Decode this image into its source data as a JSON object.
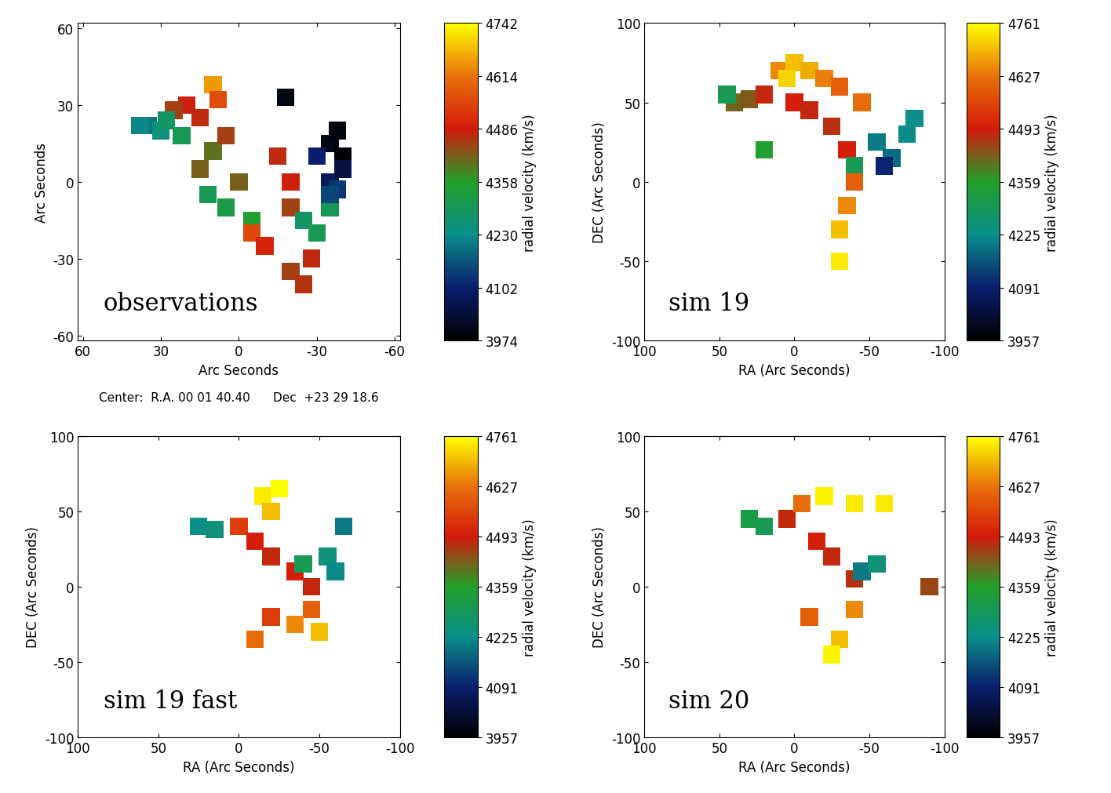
{
  "chart_data": [
    {
      "type": "scatter",
      "annotation": "observations",
      "note": "Center:  R.A. 00 01 40.40      Dec  +23 29 18.6",
      "x_label": "Arc Seconds",
      "y_label": "Arc Seconds",
      "marker": "s",
      "xlim": [
        62,
        -62
      ],
      "ylim": [
        -62,
        62
      ],
      "xticks": [
        60,
        30,
        0,
        -30,
        -60
      ],
      "yticks": [
        -60,
        -30,
        0,
        30,
        60
      ],
      "x": [
        10,
        8,
        20,
        15,
        25,
        35,
        30,
        38,
        28,
        22,
        10,
        15,
        5,
        -15,
        -20,
        0,
        12,
        5,
        -5,
        -20,
        -5,
        -10,
        -20,
        -25,
        -28,
        -25,
        -30,
        -35,
        -35,
        -40,
        -35,
        -38,
        -40,
        -30,
        -38,
        -18,
        -35
      ],
      "y": [
        38,
        32,
        30,
        25,
        28,
        22,
        20,
        22,
        24,
        18,
        12,
        5,
        18,
        10,
        0,
        0,
        -5,
        -10,
        -15,
        -10,
        -20,
        -25,
        -35,
        -40,
        -30,
        -15,
        -20,
        -10,
        15,
        10,
        0,
        -3,
        5,
        10,
        20,
        33,
        -5
      ],
      "color_values": [
        4650,
        4560,
        4480,
        4470,
        4450,
        4200,
        4250,
        4220,
        4280,
        4300,
        4400,
        4420,
        4450,
        4470,
        4480,
        4420,
        4300,
        4320,
        4350,
        4450,
        4550,
        4500,
        4450,
        4460,
        4470,
        4280,
        4300,
        4300,
        4000,
        3980,
        4080,
        4130,
        4050,
        4100,
        3990,
        4000,
        4150
      ],
      "colorbar_range": [
        3974,
        4742
      ],
      "colorbar_ticks": [
        3974,
        4102,
        4230,
        4358,
        4486,
        4614,
        4742
      ],
      "colorbar_label": "radial velocity (km/s)"
    },
    {
      "type": "scatter",
      "annotation": "sim 19",
      "x_label": "RA (Arc Seconds)",
      "y_label": "DEC (Arc Seconds)",
      "marker": "s",
      "xlim": [
        100,
        -100
      ],
      "ylim": [
        -100,
        100
      ],
      "xticks": [
        100,
        50,
        0,
        -50,
        -100
      ],
      "yticks": [
        -100,
        -50,
        0,
        50,
        100
      ],
      "x": [
        40,
        30,
        45,
        20,
        0,
        -10,
        -25,
        -35,
        10,
        0,
        -10,
        -20,
        -30,
        -45,
        5,
        -55,
        -65,
        -75,
        -80,
        -60,
        -40,
        20,
        -40,
        -35,
        -30,
        -30
      ],
      "y": [
        50,
        52,
        55,
        55,
        50,
        45,
        35,
        20,
        70,
        75,
        70,
        65,
        60,
        50,
        65,
        25,
        15,
        30,
        40,
        10,
        10,
        20,
        0,
        -15,
        -30,
        -50
      ],
      "color_values": [
        4420,
        4430,
        4300,
        4480,
        4500,
        4480,
        4470,
        4500,
        4650,
        4700,
        4680,
        4640,
        4600,
        4620,
        4720,
        4200,
        4180,
        4220,
        4230,
        4100,
        4300,
        4350,
        4600,
        4650,
        4700,
        4740
      ],
      "colorbar_range": [
        3957,
        4761
      ],
      "colorbar_ticks": [
        3957,
        4091,
        4225,
        4359,
        4493,
        4627,
        4761
      ],
      "colorbar_label": "radial velocity (km/s)"
    },
    {
      "type": "scatter",
      "annotation": "sim 19 fast",
      "x_label": "RA (Arc Seconds)",
      "y_label": "DEC (Arc Seconds)",
      "marker": "s",
      "xlim": [
        100,
        -100
      ],
      "ylim": [
        -100,
        100
      ],
      "xticks": [
        100,
        50,
        0,
        -50,
        -100
      ],
      "yticks": [
        -100,
        -50,
        0,
        50,
        100
      ],
      "x": [
        25,
        15,
        -15,
        -25,
        -20,
        0,
        -10,
        -20,
        -35,
        -45,
        -40,
        -55,
        -60,
        -45,
        -35,
        -20,
        -10,
        -50,
        -65
      ],
      "y": [
        40,
        38,
        60,
        65,
        50,
        40,
        30,
        20,
        10,
        0,
        15,
        20,
        10,
        -15,
        -25,
        -20,
        -35,
        -30,
        40
      ],
      "color_values": [
        4230,
        4250,
        4740,
        4760,
        4700,
        4550,
        4500,
        4480,
        4500,
        4480,
        4300,
        4250,
        4220,
        4600,
        4650,
        4550,
        4620,
        4700,
        4200
      ],
      "colorbar_range": [
        3957,
        4761
      ],
      "colorbar_ticks": [
        3957,
        4091,
        4225,
        4359,
        4493,
        4627,
        4761
      ],
      "colorbar_label": "radial velocity (km/s)"
    },
    {
      "type": "scatter",
      "annotation": "sim 20",
      "x_label": "RA (Arc Seconds)",
      "y_label": "DEC (Arc Seconds)",
      "marker": "s",
      "xlim": [
        100,
        -100
      ],
      "ylim": [
        -100,
        100
      ],
      "xticks": [
        100,
        50,
        0,
        -50,
        -100
      ],
      "yticks": [
        -100,
        -50,
        0,
        50,
        100
      ],
      "x": [
        20,
        30,
        5,
        -5,
        -20,
        -40,
        -60,
        -15,
        -25,
        -40,
        -45,
        -55,
        -40,
        -30,
        -25,
        -10,
        -90
      ],
      "y": [
        40,
        45,
        45,
        55,
        60,
        55,
        55,
        30,
        20,
        5,
        10,
        15,
        -15,
        -35,
        -45,
        -20,
        0
      ],
      "color_values": [
        4300,
        4320,
        4480,
        4620,
        4750,
        4740,
        4740,
        4500,
        4480,
        4470,
        4200,
        4250,
        4650,
        4700,
        4750,
        4600,
        4450
      ],
      "colorbar_range": [
        3957,
        4761
      ],
      "colorbar_ticks": [
        3957,
        4091,
        4225,
        4359,
        4493,
        4627,
        4761
      ],
      "colorbar_label": "radial velocity (km/s)"
    }
  ]
}
